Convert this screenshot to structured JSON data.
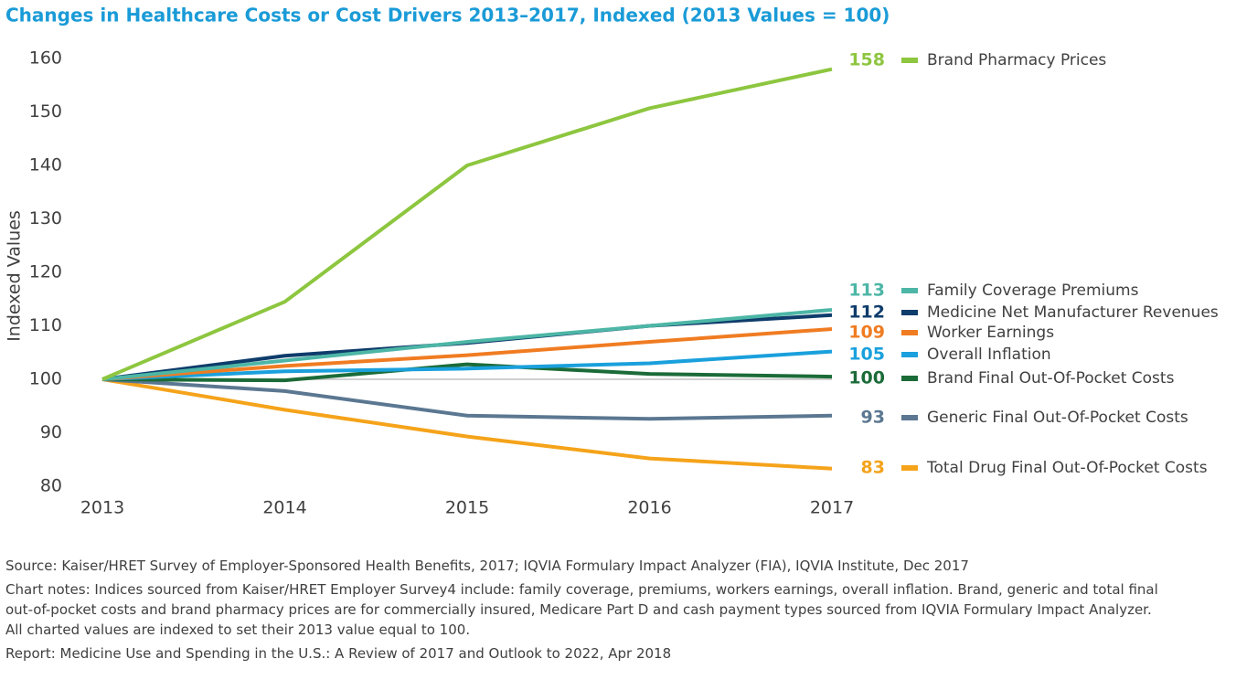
{
  "chart_data": {
    "type": "line",
    "title": "Changes in Healthcare Costs or Cost Drivers 2013–2017, Indexed (2013 Values = 100)",
    "y_label": "Indexed Values",
    "categories": [
      "2013",
      "2014",
      "2015",
      "2016",
      "2017"
    ],
    "ylim": [
      80,
      160
    ],
    "yticks": [
      80,
      90,
      100,
      110,
      120,
      130,
      140,
      150,
      160
    ],
    "reference_line": 100,
    "series": [
      {
        "name": "Brand Pharmacy Prices",
        "color": "#8dc63f",
        "values": [
          100,
          114.5,
          140,
          150.7,
          158
        ],
        "value_labels": [
          null,
          null,
          null,
          null,
          "158"
        ]
      },
      {
        "name": "Family Coverage Premiums",
        "color": "#4db6a6",
        "values": [
          100,
          103.5,
          107,
          110,
          113
        ],
        "value_labels": [
          null,
          null,
          null,
          null,
          "113"
        ]
      },
      {
        "name": "Medicine Net Manufacturer Revenues",
        "color": "#0e3c6b",
        "values": [
          100,
          104.4,
          106.8,
          110,
          112
        ],
        "value_labels": [
          null,
          null,
          null,
          null,
          "112"
        ]
      },
      {
        "name": "Worker Earnings",
        "color": "#f07c22",
        "values": [
          100,
          102.5,
          104.5,
          107,
          109.4
        ],
        "value_labels": [
          null,
          null,
          null,
          null,
          "109"
        ]
      },
      {
        "name": "Overall Inflation",
        "color": "#1aa0dc",
        "values": [
          100,
          101.5,
          102,
          103,
          105.2
        ],
        "value_labels": [
          null,
          null,
          null,
          null,
          "105"
        ]
      },
      {
        "name": "Brand Final Out-Of-Pocket Costs",
        "color": "#1b6b38",
        "values": [
          100,
          99.8,
          102.8,
          101,
          100.5
        ],
        "value_labels": [
          null,
          null,
          null,
          null,
          "100"
        ]
      },
      {
        "name": "Generic Final Out-Of-Pocket Costs",
        "color": "#5b7791",
        "values": [
          100,
          97.8,
          93.2,
          92.6,
          93.2
        ],
        "value_labels": [
          null,
          null,
          null,
          null,
          "93"
        ]
      },
      {
        "name": "Total Drug Final Out-Of-Pocket Costs",
        "color": "#f5a31a",
        "values": [
          100,
          94.3,
          89.3,
          85.2,
          83.3
        ],
        "value_labels": [
          null,
          null,
          null,
          null,
          "83"
        ]
      }
    ],
    "source": "Source: Kaiser/HRET Survey of Employer-Sponsored Health Benefits, 2017; IQVIA Formulary Impact Analyzer (FIA), IQVIA Institute, Dec 2017",
    "notes": [
      "Chart notes: Indices sourced from Kaiser/HRET Employer Survey4 include: family coverage, premiums, workers earnings, overall inflation. Brand, generic and total final",
      "out-of-pocket costs and brand pharmacy prices are for commercially insured, Medicare Part D and cash payment types sourced from IQVIA Formulary Impact Analyzer.",
      "All charted values are indexed to set their 2013 value equal to 100."
    ],
    "report": "Report: Medicine Use and Spending in the U.S.: A Review of 2017 and Outlook to 2022, Apr 2018"
  }
}
